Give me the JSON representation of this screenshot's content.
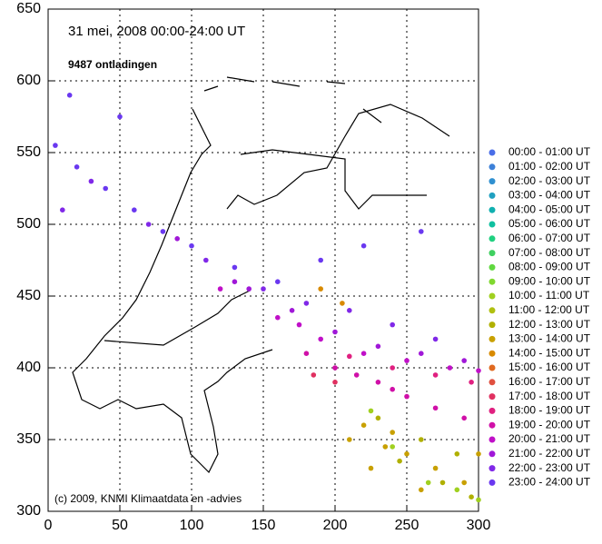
{
  "chart_data": {
    "type": "scatter",
    "title": "31 mei, 2008    00:00-24:00 UT",
    "subtitle": "9487 ontladingen",
    "annotation": "(c) 2009, KNMI Klimaatdata en -advies",
    "xlim": [
      0,
      300
    ],
    "xticks": [
      0,
      50,
      100,
      150,
      200,
      250,
      300
    ],
    "ylim": [
      300,
      650
    ],
    "yticks": [
      300,
      350,
      400,
      450,
      500,
      550,
      600,
      650
    ],
    "grid": true,
    "legend": "right",
    "series": [
      {
        "name": "00:00 - 01:00 UT",
        "color": "#4a6ee8",
        "x": [],
        "y": []
      },
      {
        "name": "01:00 - 02:00 UT",
        "color": "#3d80d8",
        "x": [],
        "y": []
      },
      {
        "name": "02:00 - 03:00 UT",
        "color": "#3090d0",
        "x": [],
        "y": []
      },
      {
        "name": "03:00 - 04:00 UT",
        "color": "#20a0c0",
        "x": [],
        "y": []
      },
      {
        "name": "04:00 - 05:00 UT",
        "color": "#10b0b0",
        "x": [],
        "y": []
      },
      {
        "name": "05:00 - 06:00 UT",
        "color": "#10c0a0",
        "x": [],
        "y": []
      },
      {
        "name": "06:00 - 07:00 UT",
        "color": "#20d080",
        "x": [],
        "y": []
      },
      {
        "name": "07:00 - 08:00 UT",
        "color": "#40d060",
        "x": [],
        "y": []
      },
      {
        "name": "08:00 - 09:00 UT",
        "color": "#60d840",
        "x": [],
        "y": []
      },
      {
        "name": "09:00 - 10:00 UT",
        "color": "#80d830",
        "x": [],
        "y": []
      },
      {
        "name": "10:00 - 11:00 UT",
        "color": "#a0d020",
        "x": [
          265,
          285,
          300,
          225,
          240
        ],
        "y": [
          320,
          315,
          308,
          370,
          345
        ]
      },
      {
        "name": "11:00 - 12:00 UT",
        "color": "#b0c010",
        "x": [],
        "y": []
      },
      {
        "name": "12:00 - 13:00 UT",
        "color": "#b0b000",
        "x": [
          245,
          275,
          285,
          260,
          295,
          230
        ],
        "y": [
          335,
          320,
          340,
          350,
          310,
          365
        ]
      },
      {
        "name": "13:00 - 14:00 UT",
        "color": "#c8a000",
        "x": [
          220,
          235,
          250,
          270,
          290,
          225,
          260,
          240,
          300,
          210
        ],
        "y": [
          360,
          345,
          340,
          330,
          320,
          330,
          315,
          355,
          340,
          350
        ]
      },
      {
        "name": "14:00 - 15:00 UT",
        "color": "#d88a00",
        "x": [
          190,
          205
        ],
        "y": [
          455,
          445
        ]
      },
      {
        "name": "15:00 - 16:00 UT",
        "color": "#e06a20",
        "x": [],
        "y": []
      },
      {
        "name": "16:00 - 17:00 UT",
        "color": "#e05040",
        "x": [],
        "y": []
      },
      {
        "name": "17:00 - 18:00 UT",
        "color": "#e03060",
        "x": [
          185,
          200
        ],
        "y": [
          395,
          390
        ]
      },
      {
        "name": "18:00 - 19:00 UT",
        "color": "#e02080",
        "x": [
          210,
          240,
          270,
          295
        ],
        "y": [
          408,
          400,
          395,
          390
        ]
      },
      {
        "name": "19:00 - 20:00 UT",
        "color": "#d010a8",
        "x": [
          200,
          230,
          250,
          270,
          290,
          215,
          240,
          180
        ],
        "y": [
          400,
          390,
          380,
          372,
          365,
          395,
          385,
          410
        ]
      },
      {
        "name": "20:00 - 21:00 UT",
        "color": "#c010c8",
        "x": [
          120,
          160,
          190,
          220,
          250,
          280,
          300,
          175
        ],
        "y": [
          455,
          435,
          420,
          410,
          405,
          400,
          398,
          430
        ]
      },
      {
        "name": "21:00 - 22:00 UT",
        "color": "#a018d8",
        "x": [
          90,
          130,
          170,
          200,
          230,
          260,
          290,
          140
        ],
        "y": [
          490,
          460,
          440,
          425,
          415,
          410,
          405,
          455
        ]
      },
      {
        "name": "22:00 - 23:00 UT",
        "color": "#8028e8",
        "x": [
          30,
          70,
          110,
          150,
          180,
          210,
          240,
          270,
          10
        ],
        "y": [
          530,
          500,
          475,
          455,
          445,
          440,
          430,
          420,
          510
        ]
      },
      {
        "name": "23:00 - 24:00 UT",
        "color": "#6a38f0",
        "x": [
          5,
          20,
          40,
          60,
          80,
          100,
          130,
          160,
          190,
          220,
          260,
          15,
          50
        ],
        "y": [
          555,
          540,
          525,
          510,
          495,
          485,
          470,
          460,
          475,
          485,
          495,
          590,
          575
        ]
      }
    ]
  }
}
